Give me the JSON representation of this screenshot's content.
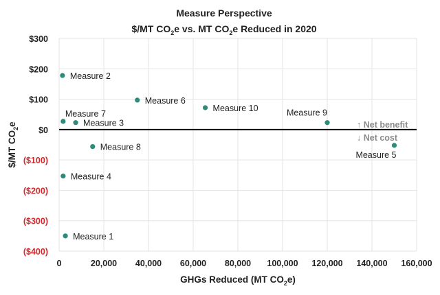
{
  "chart_data": {
    "type": "scatter",
    "title": "Measure Perspective",
    "subtitle_parts": [
      "$/MT CO",
      "2",
      "e vs. MT CO",
      "2",
      "e Reduced in 2020"
    ],
    "xlabel_parts": [
      "GHGs Reduced (MT CO",
      "2",
      "e)"
    ],
    "ylabel_parts": [
      "$/MT CO",
      "2",
      "e"
    ],
    "xlim": [
      0,
      160000
    ],
    "ylim": [
      -400,
      300
    ],
    "x_ticks": [
      0,
      20000,
      40000,
      60000,
      80000,
      100000,
      120000,
      140000,
      160000
    ],
    "x_tick_labels": [
      "0",
      "20,000",
      "40,000",
      "60,000",
      "80,000",
      "100,000",
      "120,000",
      "140,000",
      "160,000"
    ],
    "y_ticks": [
      300,
      200,
      100,
      0,
      -100,
      -200,
      -300,
      -400
    ],
    "y_tick_labels": [
      "$300",
      "$200",
      "$100",
      "$0",
      "($100)",
      "($200)",
      "($300)",
      "($400)"
    ],
    "grid": true,
    "marker_color": "#2e8b7a",
    "negative_tick_color": "#d9262b",
    "points": [
      {
        "label": "Measure 1",
        "x": 2800,
        "y": -350,
        "label_pos": "right"
      },
      {
        "label": "Measure 2",
        "x": 1500,
        "y": 178,
        "label_pos": "right"
      },
      {
        "label": "Measure 3",
        "x": 7400,
        "y": 23,
        "label_pos": "right"
      },
      {
        "label": "Measure 4",
        "x": 1800,
        "y": -153,
        "label_pos": "right"
      },
      {
        "label": "Measure 5",
        "x": 150000,
        "y": -52,
        "label_pos": "below-left"
      },
      {
        "label": "Measure 6",
        "x": 35000,
        "y": 97,
        "label_pos": "right"
      },
      {
        "label": "Measure 7",
        "x": 1800,
        "y": 27,
        "label_pos": "above"
      },
      {
        "label": "Measure 8",
        "x": 15000,
        "y": -56,
        "label_pos": "right"
      },
      {
        "label": "Measure 9",
        "x": 120000,
        "y": 23,
        "label_pos": "above-left"
      },
      {
        "label": "Measure 10",
        "x": 65400,
        "y": 72,
        "label_pos": "right"
      }
    ],
    "annotations": {
      "net_benefit": "↑ Net benefit",
      "net_cost": "↓ Net cost"
    }
  }
}
